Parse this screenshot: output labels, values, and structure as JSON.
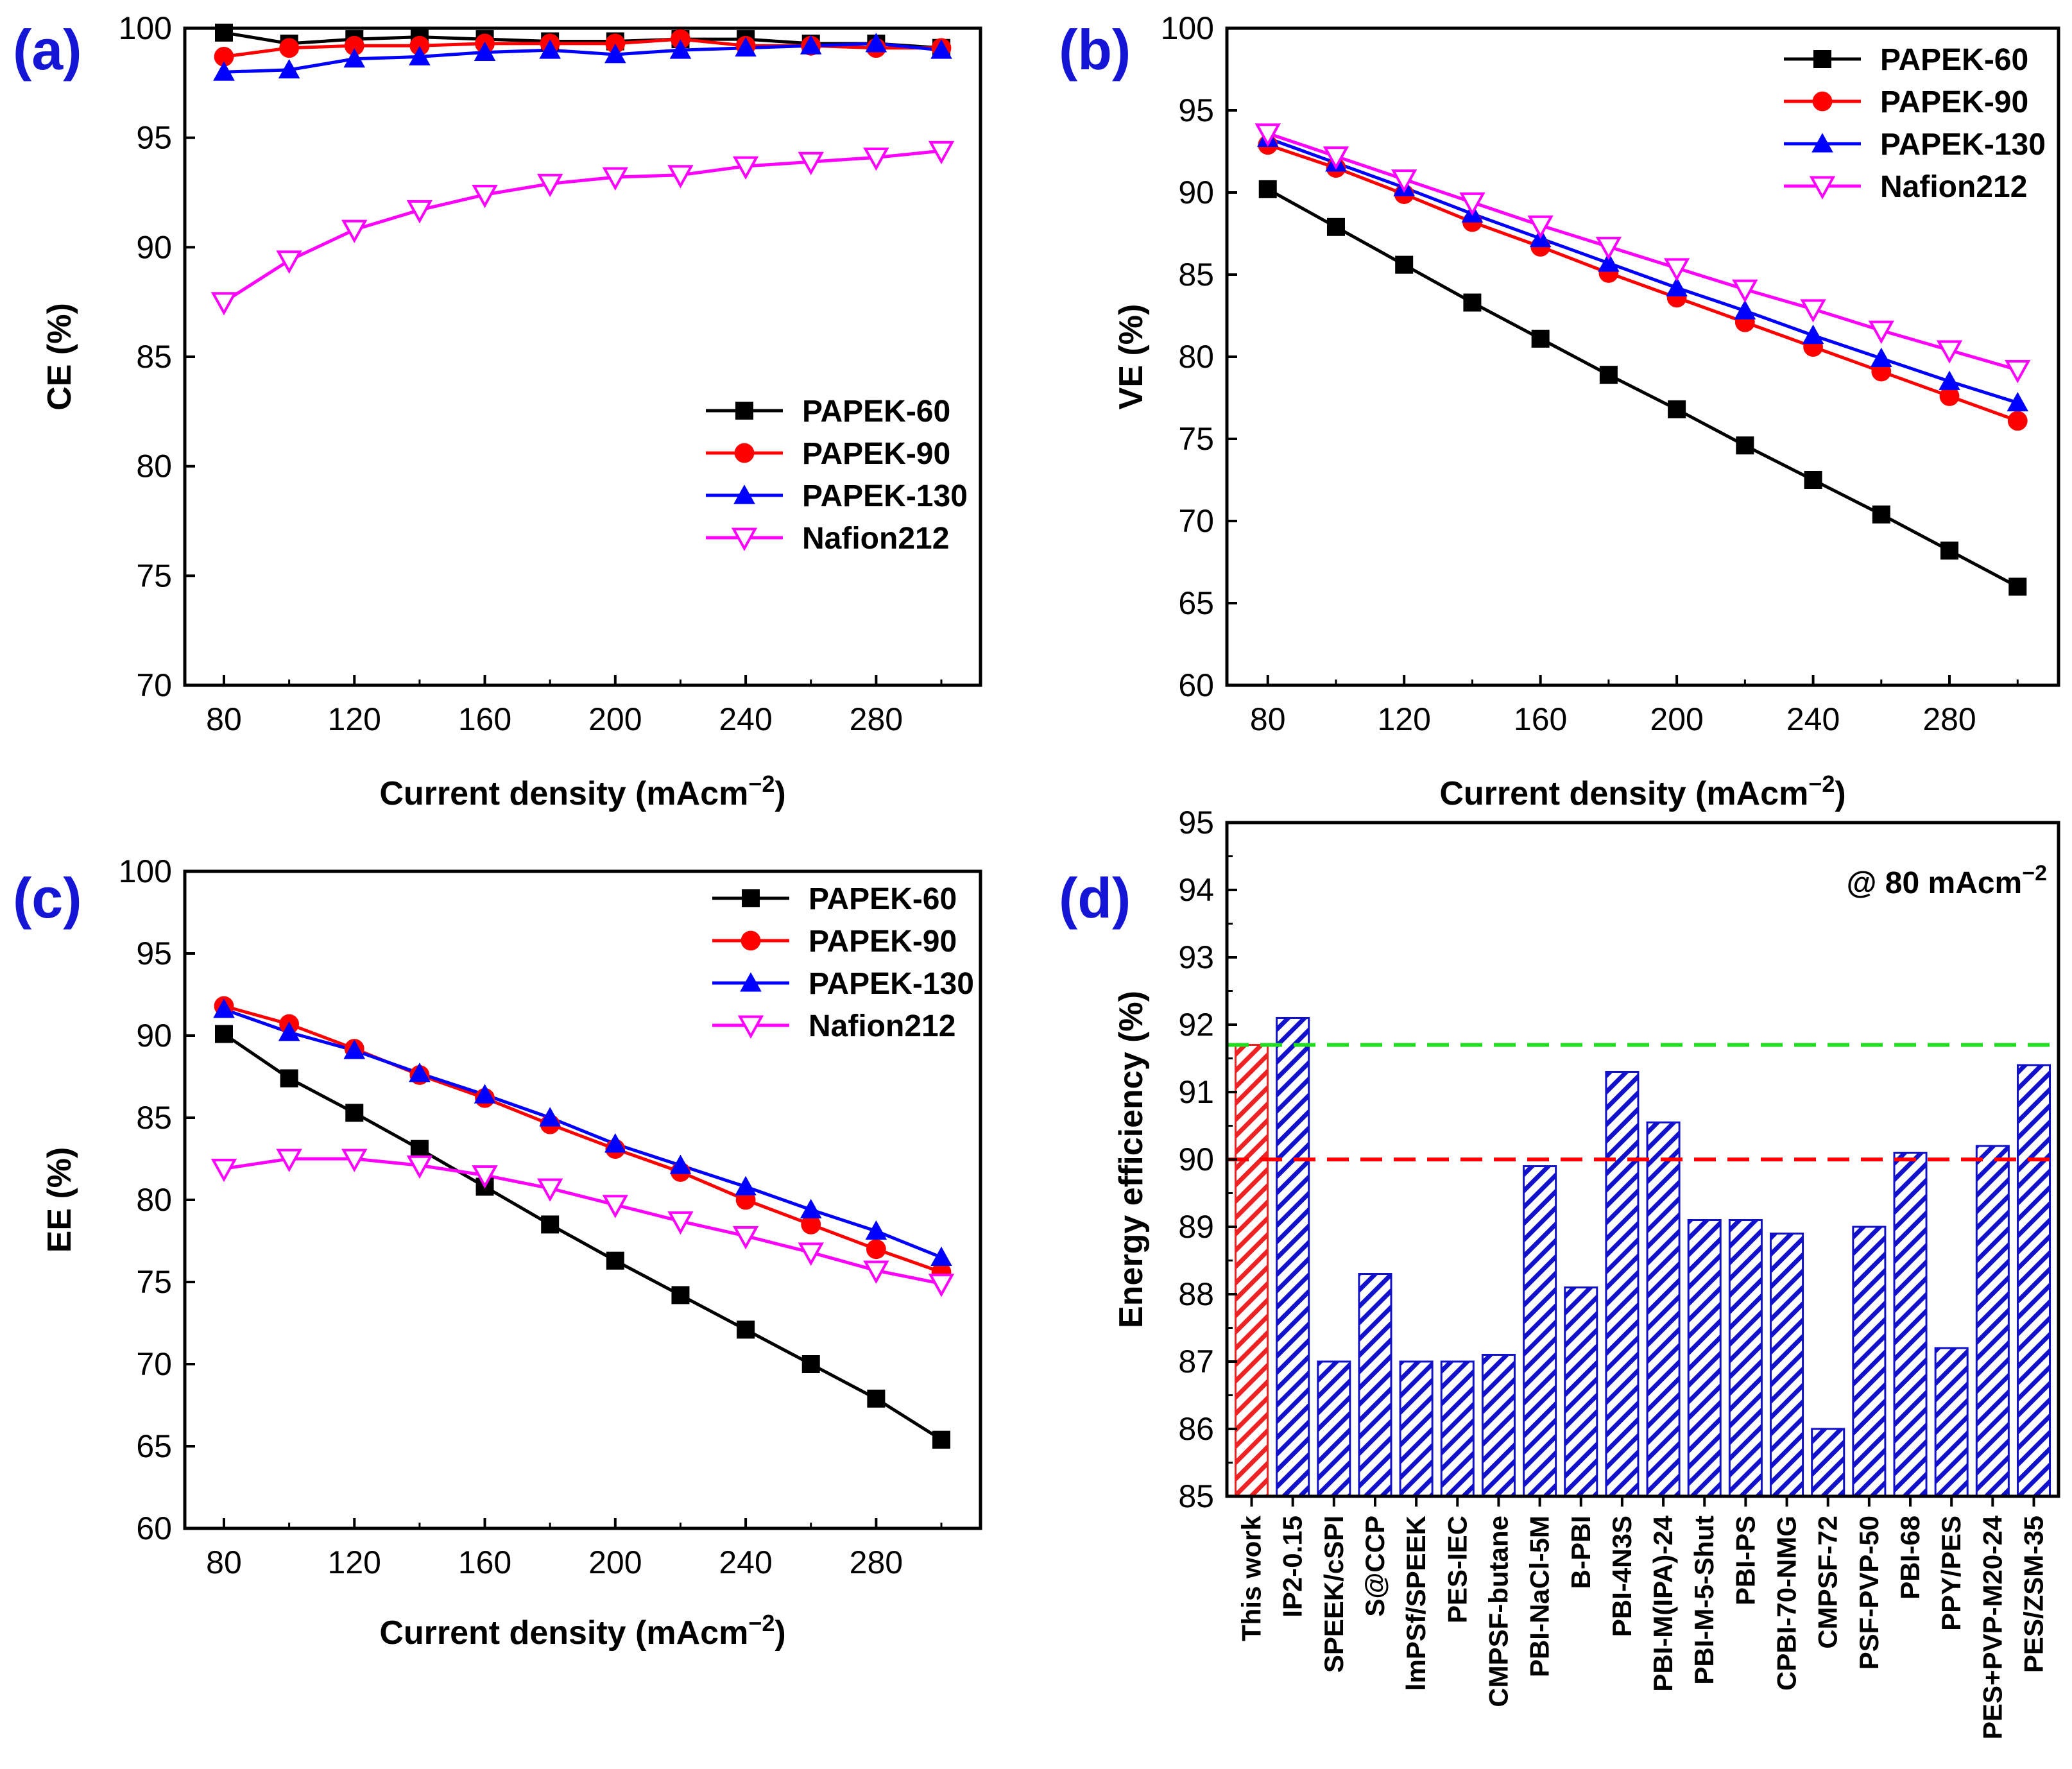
{
  "chart_data": [
    {
      "type": "line",
      "panel_label": "(a)",
      "xlabel": "Current density (mAcm",
      "xlabel_sup": "−2",
      "xlabel_close": ")",
      "ylabel": "CE (%)",
      "xlim": [
        68,
        312
      ],
      "ylim": [
        70,
        100
      ],
      "xticks": [
        80,
        120,
        160,
        200,
        240,
        280
      ],
      "yticks": [
        70,
        75,
        80,
        85,
        90,
        95,
        100
      ],
      "legend_position": "bottom-right",
      "x": [
        80,
        100,
        120,
        140,
        160,
        180,
        200,
        220,
        240,
        260,
        280,
        300
      ],
      "series": [
        {
          "name": "PAPEK-60",
          "marker": "square",
          "color": "#000000",
          "values": [
            99.8,
            99.3,
            99.5,
            99.6,
            99.5,
            99.4,
            99.4,
            99.5,
            99.5,
            99.3,
            99.3,
            99.1
          ]
        },
        {
          "name": "PAPEK-90",
          "marker": "circle",
          "color": "#ff0000",
          "values": [
            98.7,
            99.1,
            99.2,
            99.2,
            99.3,
            99.3,
            99.3,
            99.5,
            99.2,
            99.2,
            99.1,
            99.1
          ]
        },
        {
          "name": "PAPEK-130",
          "marker": "triangle",
          "color": "#0000ff",
          "values": [
            98.0,
            98.1,
            98.6,
            98.7,
            98.9,
            99.0,
            98.8,
            99.0,
            99.1,
            99.2,
            99.3,
            99.0
          ]
        },
        {
          "name": "Nafion212",
          "marker": "triangle-down-open",
          "color": "#ff00ff",
          "values": [
            87.5,
            89.4,
            90.8,
            91.7,
            92.4,
            92.9,
            93.2,
            93.3,
            93.7,
            93.9,
            94.1,
            94.4
          ]
        }
      ]
    },
    {
      "type": "line",
      "panel_label": "(b)",
      "xlabel": "Current density (mAcm",
      "xlabel_sup": "−2",
      "xlabel_close": ")",
      "ylabel": "VE (%)",
      "xlim": [
        68,
        312
      ],
      "ylim": [
        60,
        100
      ],
      "xticks": [
        80,
        120,
        160,
        200,
        240,
        280
      ],
      "yticks": [
        60,
        65,
        70,
        75,
        80,
        85,
        90,
        95,
        100
      ],
      "legend_position": "top-right",
      "x": [
        80,
        100,
        120,
        140,
        160,
        180,
        200,
        220,
        240,
        260,
        280,
        300
      ],
      "series": [
        {
          "name": "PAPEK-60",
          "marker": "square",
          "color": "#000000",
          "values": [
            90.2,
            87.9,
            85.6,
            83.3,
            81.1,
            78.9,
            76.8,
            74.6,
            72.5,
            70.4,
            68.2,
            66.0
          ]
        },
        {
          "name": "PAPEK-90",
          "marker": "circle",
          "color": "#ff0000",
          "values": [
            92.9,
            91.5,
            89.9,
            88.2,
            86.7,
            85.1,
            83.6,
            82.1,
            80.6,
            79.1,
            77.6,
            76.1
          ]
        },
        {
          "name": "PAPEK-130",
          "marker": "triangle",
          "color": "#0000ff",
          "values": [
            93.3,
            91.8,
            90.3,
            88.7,
            87.2,
            85.7,
            84.2,
            82.8,
            81.3,
            79.9,
            78.5,
            77.2
          ]
        },
        {
          "name": "Nafion212",
          "marker": "triangle-down-open",
          "color": "#ff00ff",
          "values": [
            93.6,
            92.2,
            90.8,
            89.4,
            88.0,
            86.7,
            85.4,
            84.1,
            82.9,
            81.6,
            80.4,
            79.2
          ]
        }
      ]
    },
    {
      "type": "line",
      "panel_label": "(c)",
      "xlabel": "Current density (mAcm",
      "xlabel_sup": "−2",
      "xlabel_close": ")",
      "ylabel": "EE (%)",
      "xlim": [
        68,
        312
      ],
      "ylim": [
        60,
        100
      ],
      "xticks": [
        80,
        120,
        160,
        200,
        240,
        280
      ],
      "yticks": [
        60,
        65,
        70,
        75,
        80,
        85,
        90,
        95,
        100
      ],
      "legend_position": "top-right",
      "x": [
        80,
        100,
        120,
        140,
        160,
        180,
        200,
        220,
        240,
        260,
        280,
        300
      ],
      "series": [
        {
          "name": "PAPEK-60",
          "marker": "square",
          "color": "#000000",
          "values": [
            90.1,
            87.4,
            85.3,
            83.1,
            80.8,
            78.5,
            76.3,
            74.2,
            72.1,
            70.0,
            67.9,
            65.4
          ]
        },
        {
          "name": "PAPEK-90",
          "marker": "circle",
          "color": "#ff0000",
          "values": [
            91.8,
            90.7,
            89.2,
            87.6,
            86.2,
            84.6,
            83.1,
            81.7,
            80.0,
            78.5,
            77.0,
            75.6
          ]
        },
        {
          "name": "PAPEK-130",
          "marker": "triangle",
          "color": "#0000ff",
          "values": [
            91.6,
            90.2,
            89.1,
            87.7,
            86.4,
            85.0,
            83.4,
            82.1,
            80.8,
            79.4,
            78.1,
            76.5
          ]
        },
        {
          "name": "Nafion212",
          "marker": "triangle-down-open",
          "color": "#ff00ff",
          "values": [
            81.9,
            82.5,
            82.5,
            82.1,
            81.5,
            80.7,
            79.7,
            78.7,
            77.8,
            76.8,
            75.7,
            74.9
          ]
        }
      ]
    },
    {
      "type": "bar",
      "panel_label": "(d)",
      "annotation": "@ 80 mAcm",
      "annotation_sup": "−2",
      "ylabel": "Energy efficiency (%)",
      "ylim": [
        85,
        95
      ],
      "yticks": [
        85,
        86,
        87,
        88,
        89,
        90,
        91,
        92,
        93,
        94,
        95
      ],
      "reference_lines": [
        {
          "value": 91.7,
          "color": "#22dd22",
          "style": "dashed"
        },
        {
          "value": 90.0,
          "color": "#ff0000",
          "style": "dashed"
        }
      ],
      "categories": [
        "This work",
        "IP2-0.15",
        "SPEEK/cSPI",
        "S@CCP",
        "lmPSf/SPEEK",
        "PES-IEC",
        "CMPSF-butane",
        "PBI-NaCl-5M",
        "B-PBI",
        "PBI-4N3S",
        "PBI-M(IPA)-24",
        "PBI-M-5-Shut",
        "PBI-PS",
        "CPBI-70-NMG",
        "CMPSF-72",
        "PSF-PVP-50",
        "PBI-68",
        "PPY/PES",
        "PES+PVP-M20-24",
        "PES/ZSM-35"
      ],
      "values": [
        91.7,
        92.1,
        87.0,
        88.3,
        87.0,
        87.0,
        87.1,
        89.9,
        88.1,
        91.3,
        90.55,
        89.1,
        89.1,
        88.9,
        86.0,
        89.0,
        90.1,
        87.2,
        90.2,
        91.4
      ],
      "highlight_color": "#ee2222",
      "bar_color": "#1111cc"
    }
  ]
}
